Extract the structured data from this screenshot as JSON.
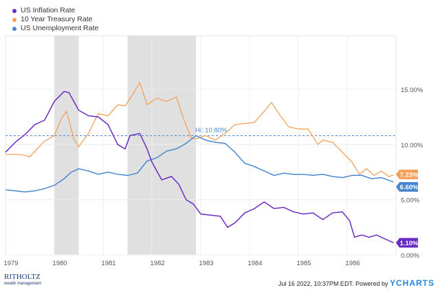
{
  "chart_data": {
    "type": "line",
    "xlim": [
      1979.0,
      1987.0
    ],
    "ylim": [
      0,
      16.5
    ],
    "x_ticks": [
      "1979",
      "1980",
      "1981",
      "1982",
      "1983",
      "1984",
      "1985",
      "1986"
    ],
    "y_ticks": [
      "0.00%",
      "5.00%",
      "10.00%",
      "15.00%"
    ],
    "grid": true,
    "legend_placement": "top-left",
    "recessions": [
      [
        1980.0,
        1980.5
      ],
      [
        1981.5,
        1982.9
      ]
    ],
    "hi_line": {
      "value": 10.8,
      "label": "Hi: 10.80%"
    },
    "series": [
      {
        "name": "US Inflation Rate",
        "color": "#6a2bc4",
        "end_label": "1.10%",
        "x": [
          1979.0,
          1979.2,
          1979.4,
          1979.6,
          1979.8,
          1980.0,
          1980.2,
          1980.3,
          1980.5,
          1980.7,
          1980.9,
          1981.1,
          1981.3,
          1981.45,
          1981.55,
          1981.75,
          1981.9,
          1982.0,
          1982.2,
          1982.4,
          1982.55,
          1982.7,
          1982.85,
          1983.0,
          1983.2,
          1983.4,
          1983.55,
          1983.7,
          1983.9,
          1984.1,
          1984.3,
          1984.5,
          1984.7,
          1984.9,
          1985.1,
          1985.3,
          1985.5,
          1985.7,
          1985.9,
          1986.05,
          1986.15,
          1986.3,
          1986.45,
          1986.6,
          1986.75,
          1986.95
        ],
        "y": [
          9.3,
          10.2,
          10.9,
          11.8,
          12.2,
          13.9,
          14.8,
          14.7,
          13.1,
          12.6,
          12.5,
          11.8,
          10.0,
          9.6,
          10.8,
          11.0,
          9.6,
          8.4,
          6.8,
          7.1,
          6.4,
          5.0,
          4.6,
          3.7,
          3.6,
          3.5,
          2.5,
          2.9,
          3.8,
          4.2,
          4.8,
          4.2,
          4.3,
          3.9,
          3.7,
          3.8,
          3.2,
          3.8,
          3.9,
          3.1,
          1.6,
          1.8,
          1.6,
          1.8,
          1.5,
          1.1
        ]
      },
      {
        "name": "10 Year Treasury Rate",
        "color": "#f5a05a",
        "end_label": "7.23%",
        "x": [
          1979.0,
          1979.3,
          1979.5,
          1979.8,
          1980.0,
          1980.15,
          1980.25,
          1980.4,
          1980.5,
          1980.7,
          1980.9,
          1981.1,
          1981.3,
          1981.45,
          1981.6,
          1981.75,
          1981.9,
          1982.1,
          1982.3,
          1982.5,
          1982.65,
          1982.8,
          1982.9,
          1983.1,
          1983.3,
          1983.5,
          1983.7,
          1983.9,
          1984.1,
          1984.3,
          1984.45,
          1984.6,
          1984.8,
          1985.0,
          1985.2,
          1985.4,
          1985.5,
          1985.7,
          1985.9,
          1986.1,
          1986.25,
          1986.4,
          1986.55,
          1986.7,
          1986.85,
          1986.95
        ],
        "y": [
          9.1,
          9.1,
          8.9,
          10.3,
          10.8,
          12.4,
          13.0,
          10.5,
          9.8,
          11.0,
          12.8,
          12.6,
          13.6,
          13.5,
          14.5,
          15.6,
          13.6,
          14.2,
          13.9,
          14.3,
          12.3,
          10.6,
          10.5,
          10.8,
          10.4,
          11.0,
          11.8,
          11.9,
          12.0,
          13.0,
          13.8,
          12.8,
          11.6,
          11.4,
          11.4,
          10.0,
          10.4,
          10.2,
          9.3,
          8.4,
          7.3,
          7.8,
          7.2,
          7.6,
          7.1,
          7.23
        ]
      },
      {
        "name": "US Unemployment Rate",
        "color": "#4a86d0",
        "end_label": "6.60%",
        "x": [
          1979.0,
          1979.2,
          1979.4,
          1979.6,
          1979.8,
          1980.0,
          1980.2,
          1980.35,
          1980.5,
          1980.7,
          1980.9,
          1981.1,
          1981.3,
          1981.5,
          1981.7,
          1981.9,
          1982.1,
          1982.3,
          1982.5,
          1982.7,
          1982.9,
          1983.1,
          1983.3,
          1983.5,
          1983.7,
          1983.9,
          1984.1,
          1984.3,
          1984.5,
          1984.7,
          1984.9,
          1985.1,
          1985.3,
          1985.5,
          1985.7,
          1985.9,
          1986.1,
          1986.3,
          1986.5,
          1986.7,
          1986.95
        ],
        "y": [
          5.9,
          5.8,
          5.7,
          5.8,
          6.0,
          6.3,
          6.9,
          7.5,
          7.8,
          7.6,
          7.3,
          7.5,
          7.3,
          7.2,
          7.4,
          8.5,
          8.8,
          9.4,
          9.6,
          10.1,
          10.8,
          10.4,
          10.2,
          10.1,
          9.3,
          8.3,
          8.0,
          7.6,
          7.2,
          7.4,
          7.3,
          7.3,
          7.2,
          7.3,
          7.1,
          7.0,
          7.2,
          7.2,
          6.9,
          7.0,
          6.6
        ]
      }
    ]
  },
  "footer": {
    "timestamp": "Jul 16 2022, 10:37PM EDT. Powered by",
    "brand": "YCHARTS",
    "logo": "RITHOLTZ",
    "logo_sub": "wealth management"
  }
}
